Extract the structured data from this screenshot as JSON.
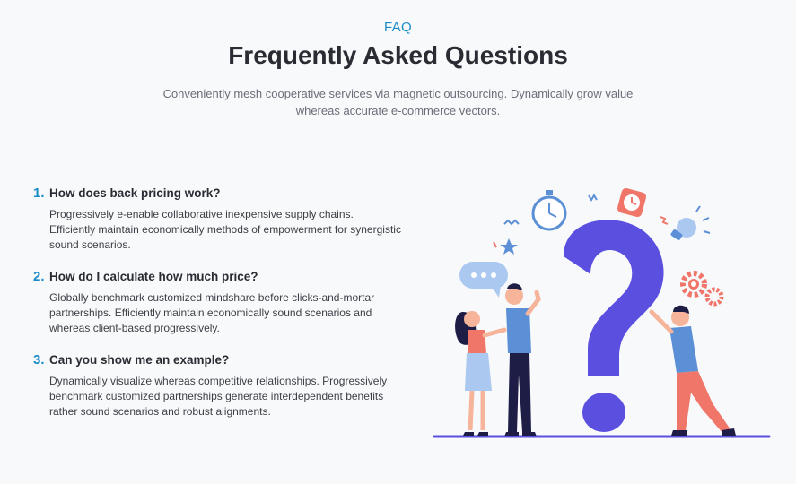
{
  "header": {
    "eyebrow": "FAQ",
    "title": "Frequently Asked Questions",
    "subtitle": "Conveniently mesh cooperative services via magnetic outsourcing. Dynamically grow value whereas accurate e-commerce vectors."
  },
  "faqs": [
    {
      "number": "1.",
      "question": "How does back pricing work?",
      "answer": "Progressively e-enable collaborative inexpensive supply chains. Efficiently maintain economically methods of empowerment for synergistic sound scenarios."
    },
    {
      "number": "2.",
      "question": "How do I calculate how much price?",
      "answer": "Globally benchmark customized mindshare before clicks-and-mortar partnerships. Efficiently maintain economically sound scenarios and whereas client-based progressively."
    },
    {
      "number": "3.",
      "question": "Can you show me an example?",
      "answer": "Dynamically visualize whereas competitive relationships. Progressively benchmark customized partnerships generate interdependent benefits rather sound scenarios and robust alignments."
    }
  ],
  "colors": {
    "accent": "#1a8bc9",
    "question_mark": "#5b4fe0",
    "coral": "#f0766a",
    "light_blue": "#aac8f0"
  },
  "illustration": {
    "icons": [
      "speech-bubble-icon",
      "stopwatch-icon",
      "clock-icon",
      "lightbulb-icon",
      "gear-icon",
      "star-icon"
    ]
  }
}
